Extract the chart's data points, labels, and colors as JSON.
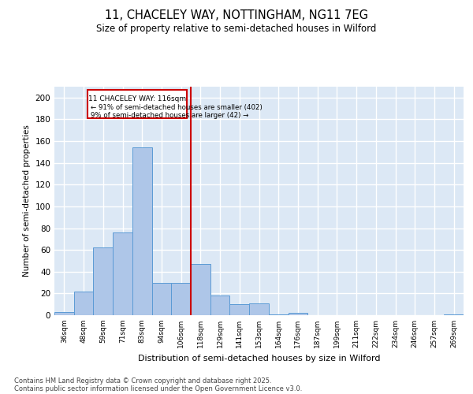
{
  "title_line1": "11, CHACELEY WAY, NOTTINGHAM, NG11 7EG",
  "title_line2": "Size of property relative to semi-detached houses in Wilford",
  "xlabel": "Distribution of semi-detached houses by size in Wilford",
  "ylabel": "Number of semi-detached properties",
  "footer_line1": "Contains HM Land Registry data © Crown copyright and database right 2025.",
  "footer_line2": "Contains public sector information licensed under the Open Government Licence v3.0.",
  "annotation_line1": "11 CHACELEY WAY: 116sqm",
  "annotation_line2": "← 91% of semi-detached houses are smaller (402)",
  "annotation_line3": "9% of semi-detached houses are larger (42) →",
  "bar_color": "#aec6e8",
  "bar_edge_color": "#5b9bd5",
  "property_line_color": "#cc0000",
  "annotation_box_color": "#cc0000",
  "background_color": "#dce8f5",
  "grid_color": "#ffffff",
  "categories": [
    "36sqm",
    "48sqm",
    "59sqm",
    "71sqm",
    "83sqm",
    "94sqm",
    "106sqm",
    "118sqm",
    "129sqm",
    "141sqm",
    "153sqm",
    "164sqm",
    "176sqm",
    "187sqm",
    "199sqm",
    "211sqm",
    "222sqm",
    "234sqm",
    "246sqm",
    "257sqm",
    "269sqm"
  ],
  "values": [
    3,
    22,
    62,
    76,
    154,
    30,
    30,
    47,
    18,
    10,
    11,
    1,
    2,
    0,
    0,
    0,
    0,
    0,
    0,
    0,
    1
  ],
  "ylim": [
    0,
    210
  ],
  "yticks": [
    0,
    20,
    40,
    60,
    80,
    100,
    120,
    140,
    160,
    180,
    200
  ]
}
